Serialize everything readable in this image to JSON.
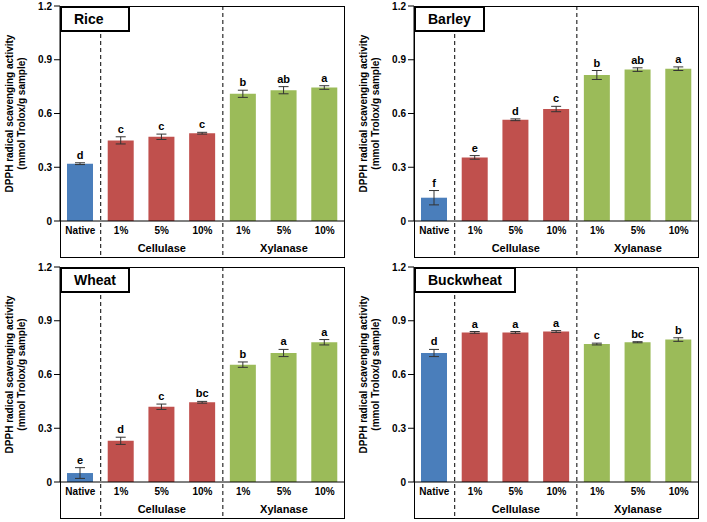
{
  "chart_data": [
    {
      "type": "bar",
      "title": "Rice",
      "y_label": [
        "DPPH radical scavenging activity",
        "(mmol Trolox/g sample)"
      ],
      "categories": [
        "Native",
        "1%",
        "5%",
        "10%",
        "1%",
        "5%",
        "10%"
      ],
      "group_labels": [
        null,
        "Cellulase",
        "Cellulase",
        "Cellulase",
        "Xylanase",
        "Xylanase",
        "Xylanase"
      ],
      "values": [
        0.32,
        0.45,
        0.47,
        0.49,
        0.71,
        0.73,
        0.745
      ],
      "errors": [
        0.005,
        0.02,
        0.015,
        0.005,
        0.02,
        0.02,
        0.01
      ],
      "annotations": [
        "d",
        "c",
        "c",
        "c",
        "b",
        "ab",
        "a"
      ],
      "colors": [
        "#4a7ebb",
        "#c0504d",
        "#c0504d",
        "#c0504d",
        "#9bbb59",
        "#9bbb59",
        "#9bbb59"
      ],
      "ylim": [
        0,
        1.2
      ],
      "yticks": [
        0,
        0.3,
        0.6,
        0.9,
        1.2
      ],
      "grid": false
    },
    {
      "type": "bar",
      "title": "Barley",
      "y_label": [
        "DPPH radical scavenging activity",
        "(mmol Trolox/g sample)"
      ],
      "categories": [
        "Native",
        "1%",
        "5%",
        "10%",
        "1%",
        "5%",
        "10%"
      ],
      "group_labels": [
        null,
        "Cellulase",
        "Cellulase",
        "Cellulase",
        "Xylanase",
        "Xylanase",
        "Xylanase"
      ],
      "values": [
        0.13,
        0.355,
        0.565,
        0.625,
        0.815,
        0.845,
        0.85
      ],
      "errors": [
        0.04,
        0.01,
        0.005,
        0.015,
        0.025,
        0.01,
        0.01
      ],
      "annotations": [
        "f",
        "e",
        "d",
        "c",
        "b",
        "ab",
        "a"
      ],
      "colors": [
        "#4a7ebb",
        "#c0504d",
        "#c0504d",
        "#c0504d",
        "#9bbb59",
        "#9bbb59",
        "#9bbb59"
      ],
      "ylim": [
        0,
        1.2
      ],
      "yticks": [
        0,
        0.3,
        0.6,
        0.9,
        1.2
      ],
      "grid": false
    },
    {
      "type": "bar",
      "title": "Wheat",
      "y_label": [
        "DPPH radical scavenging activity",
        "(mmol Trolox/g sample)"
      ],
      "categories": [
        "Native",
        "1%",
        "5%",
        "10%",
        "1%",
        "5%",
        "10%"
      ],
      "group_labels": [
        null,
        "Cellulase",
        "Cellulase",
        "Cellulase",
        "Xylanase",
        "Xylanase",
        "Xylanase"
      ],
      "values": [
        0.05,
        0.23,
        0.42,
        0.445,
        0.655,
        0.72,
        0.78
      ],
      "errors": [
        0.03,
        0.02,
        0.015,
        0.005,
        0.015,
        0.02,
        0.015
      ],
      "annotations": [
        "e",
        "d",
        "c",
        "bc",
        "b",
        "a",
        "a"
      ],
      "colors": [
        "#4a7ebb",
        "#c0504d",
        "#c0504d",
        "#c0504d",
        "#9bbb59",
        "#9bbb59",
        "#9bbb59"
      ],
      "ylim": [
        0,
        1.2
      ],
      "yticks": [
        0,
        0.3,
        0.6,
        0.9,
        1.2
      ],
      "grid": false
    },
    {
      "type": "bar",
      "title": "Buckwheat",
      "y_label": [
        "DPPH radical scavenging activity",
        "(mmol Trolox/g sample)"
      ],
      "categories": [
        "Native",
        "1%",
        "5%",
        "10%",
        "1%",
        "5%",
        "10%"
      ],
      "group_labels": [
        null,
        "Cellulase",
        "Cellulase",
        "Cellulase",
        "Xylanase",
        "Xylanase",
        "Xylanase"
      ],
      "values": [
        0.72,
        0.835,
        0.835,
        0.84,
        0.77,
        0.78,
        0.795
      ],
      "errors": [
        0.02,
        0.005,
        0.005,
        0.005,
        0.005,
        0.003,
        0.01
      ],
      "annotations": [
        "d",
        "a",
        "a",
        "a",
        "c",
        "bc",
        "b"
      ],
      "colors": [
        "#4a7ebb",
        "#c0504d",
        "#c0504d",
        "#c0504d",
        "#9bbb59",
        "#9bbb59",
        "#9bbb59"
      ],
      "ylim": [
        0,
        1.2
      ],
      "yticks": [
        0,
        0.3,
        0.6,
        0.9,
        1.2
      ],
      "grid": false
    }
  ]
}
